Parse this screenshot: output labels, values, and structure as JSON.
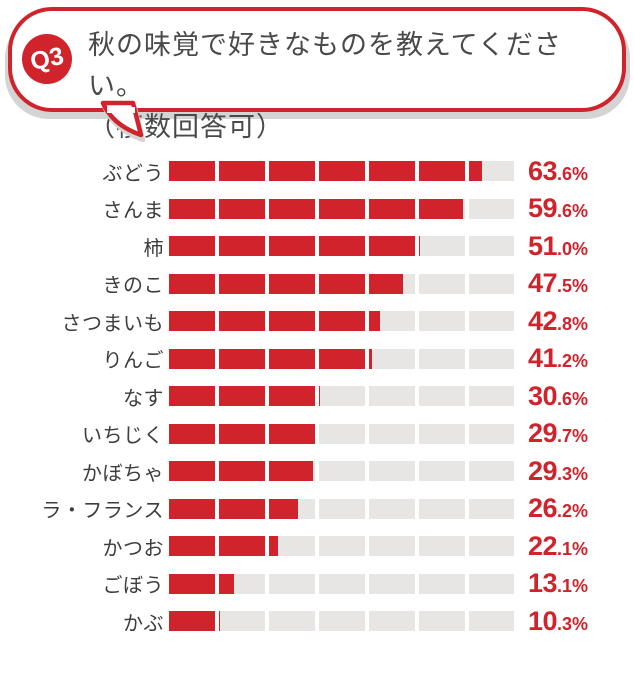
{
  "question": {
    "badge": "Q3",
    "line1": "秋の味覚で好きなものを教えてください。",
    "line2": "（複数回答可）"
  },
  "chart_data": {
    "type": "bar",
    "orientation": "horizontal",
    "title": "秋の味覚で好きなものを教えてください。（複数回答可）",
    "categories": [
      "ぶどう",
      "さんま",
      "柿",
      "きのこ",
      "さつまいも",
      "りんご",
      "なす",
      "いちじく",
      "かぼちゃ",
      "ラ・フランス",
      "かつお",
      "ごぼう",
      "かぶ"
    ],
    "values": [
      63.6,
      59.6,
      51.0,
      47.5,
      42.8,
      41.2,
      30.6,
      29.7,
      29.3,
      26.2,
      22.1,
      13.1,
      10.3
    ],
    "unit": "%",
    "value_labels": [
      "63.6%",
      "59.6%",
      "51.0%",
      "47.5%",
      "42.8%",
      "41.2%",
      "30.6%",
      "29.7%",
      "29.3%",
      "26.2%",
      "22.1%",
      "13.1%",
      "10.3%"
    ],
    "xlim": [
      0,
      70
    ],
    "grid": false,
    "legend": false,
    "bar_style": "segmented-dashed"
  },
  "colors": {
    "accent_red": "#d1232b",
    "track_gray": "#e7e6e4",
    "label_gray": "#3d3d3d",
    "question_gray": "#4a4a4a",
    "shadow_gray": "#d4d4d4"
  }
}
